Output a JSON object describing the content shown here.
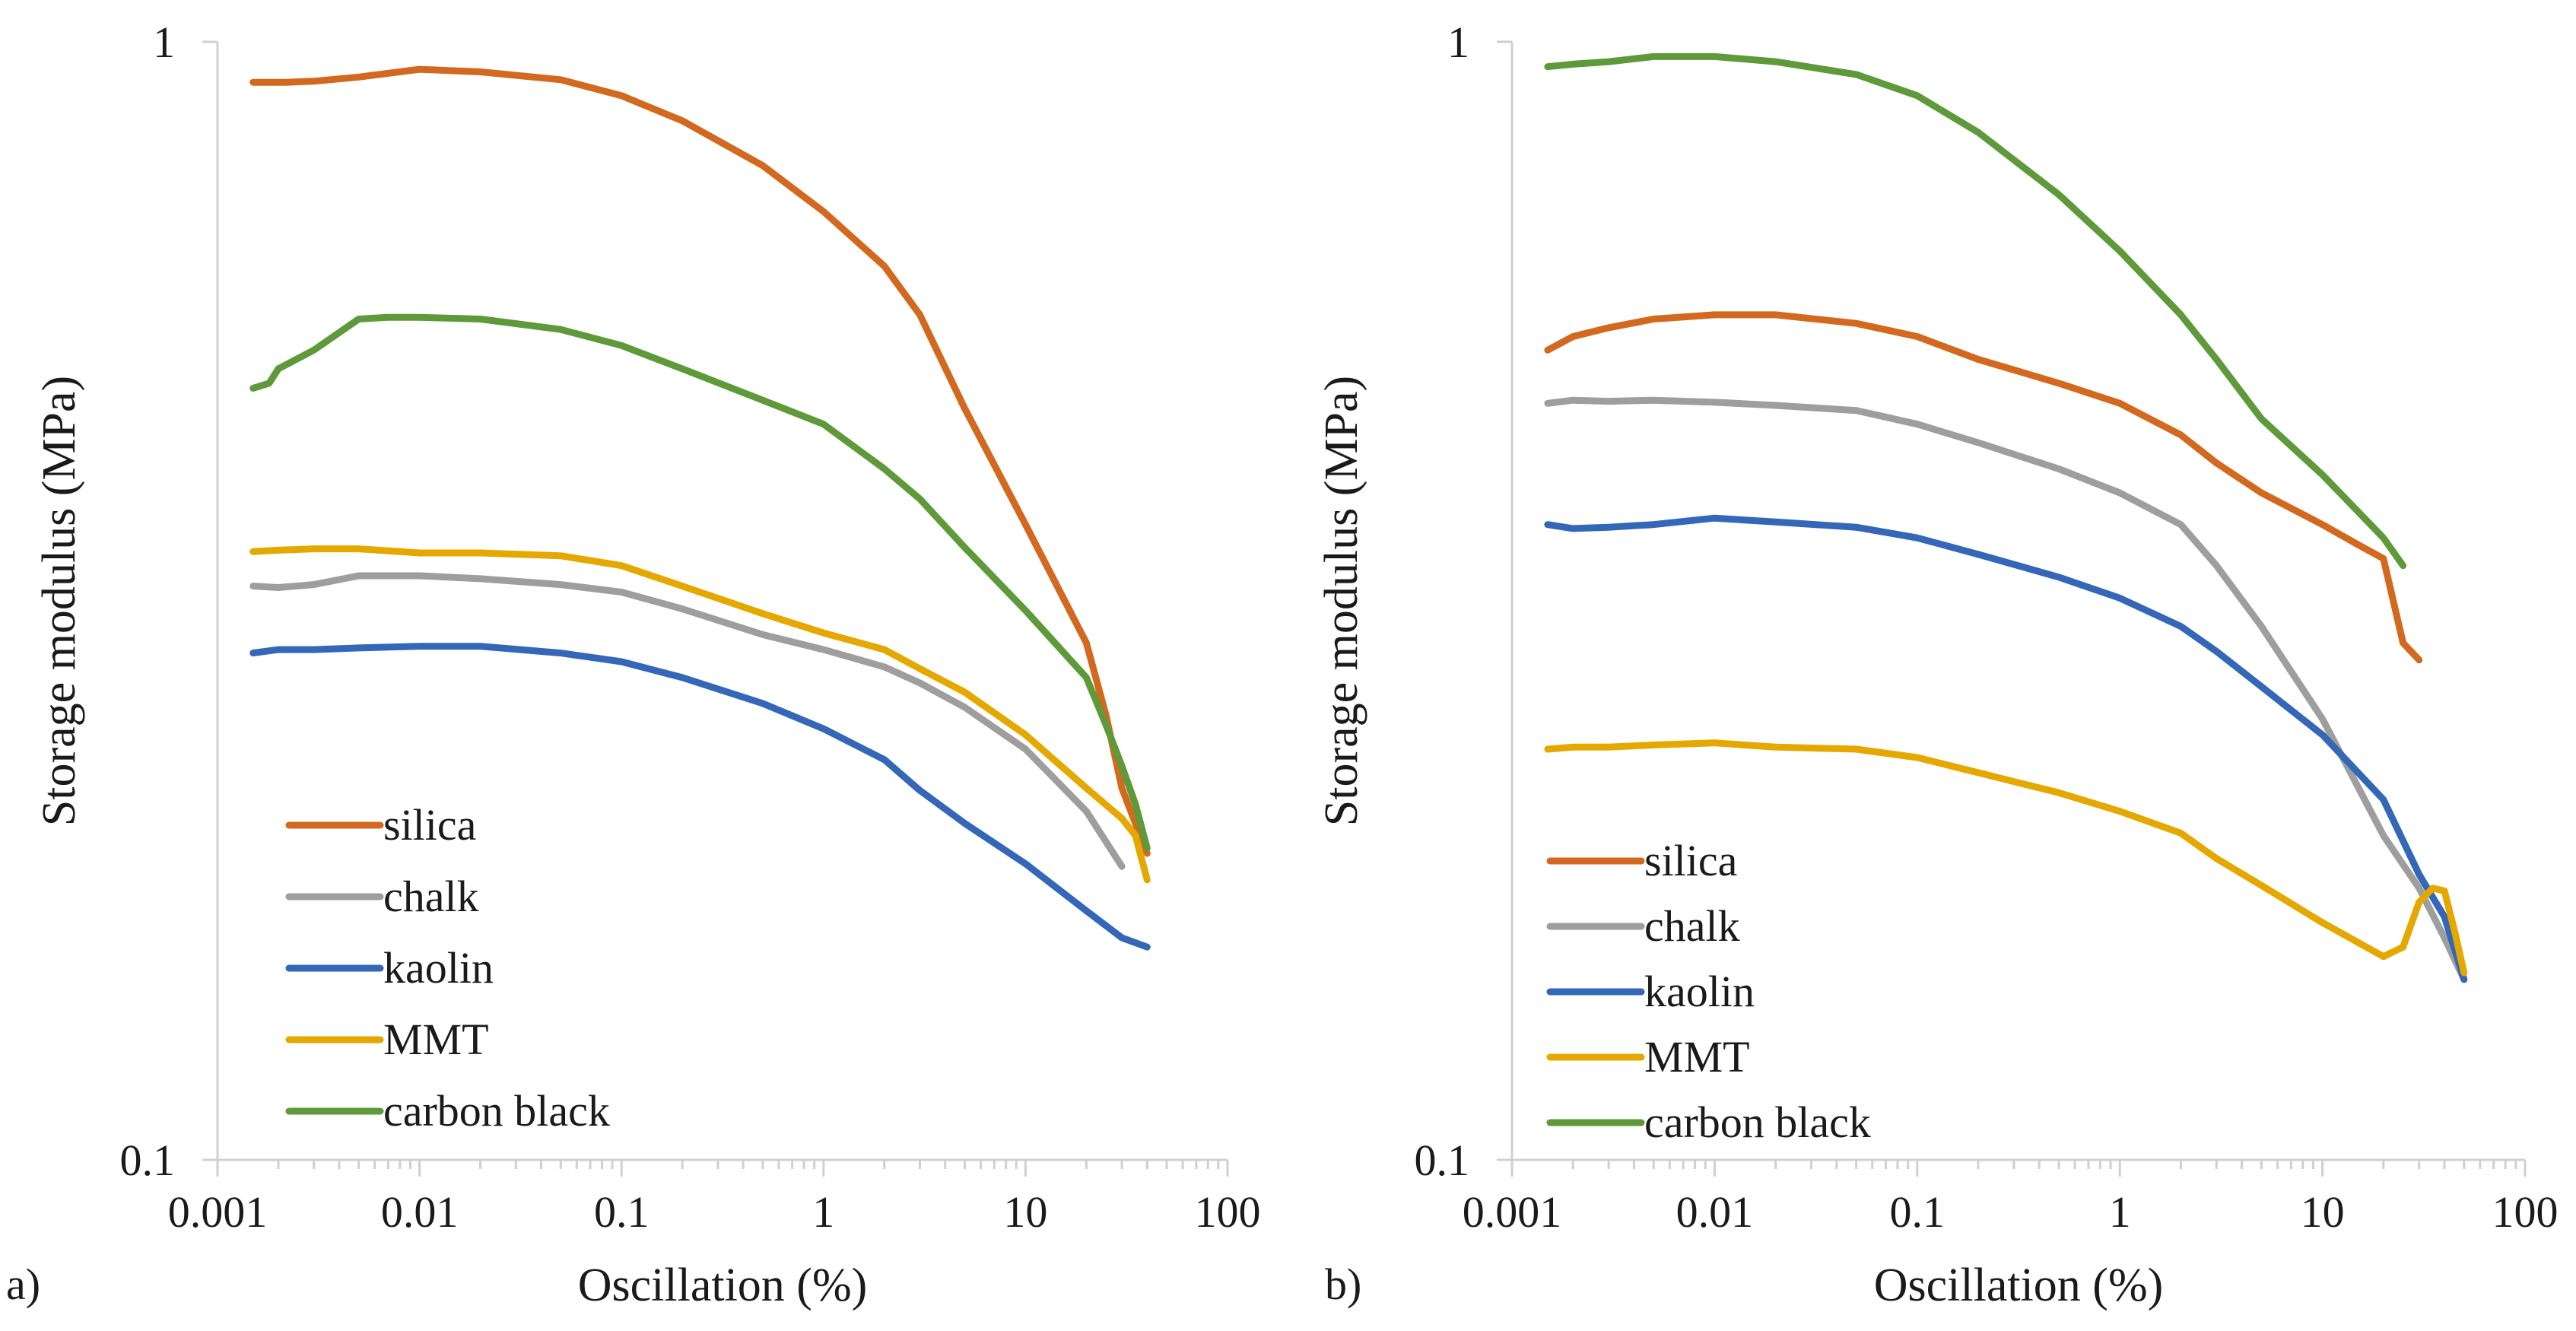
{
  "colors": {
    "silica": "#D2691E",
    "chalk": "#9E9E9E",
    "kaolin": "#3467B8",
    "MMT": "#E5A800",
    "carbon_black": "#5E9A3A",
    "axis": "#d0d0d0",
    "text": "#1a1a1a"
  },
  "chart_data": [
    {
      "type": "line",
      "panel_label": "a)",
      "xlabel": "Oscillation (%)",
      "ylabel": "Storage modulus (MPa)",
      "xscale": "log",
      "yscale": "log",
      "xlim": [
        0.001,
        100
      ],
      "ylim": [
        0.1,
        1
      ],
      "grid": false,
      "legend_position": "bottom-left",
      "x_ticks": [
        0.001,
        0.01,
        0.1,
        1,
        10,
        100
      ],
      "x_tick_labels": [
        "0.001",
        "0.01",
        "0.1",
        "1",
        "10",
        "100"
      ],
      "y_ticks": [
        0.1,
        1
      ],
      "y_tick_labels": [
        "0.1",
        "1"
      ],
      "series": [
        {
          "name": "silica",
          "key": "silica",
          "points": [
            [
              0.0015,
              0.92
            ],
            [
              0.0022,
              0.92
            ],
            [
              0.003,
              0.922
            ],
            [
              0.005,
              0.93
            ],
            [
              0.01,
              0.945
            ],
            [
              0.02,
              0.94
            ],
            [
              0.05,
              0.925
            ],
            [
              0.1,
              0.895
            ],
            [
              0.2,
              0.85
            ],
            [
              0.5,
              0.775
            ],
            [
              1,
              0.705
            ],
            [
              2,
              0.63
            ],
            [
              3,
              0.57
            ],
            [
              5,
              0.47
            ],
            [
              10,
              0.37
            ],
            [
              20,
              0.29
            ],
            [
              25,
              0.25
            ],
            [
              30,
              0.215
            ],
            [
              35,
              0.2
            ],
            [
              40,
              0.188
            ]
          ]
        },
        {
          "name": "chalk",
          "key": "chalk",
          "points": [
            [
              0.0015,
              0.326
            ],
            [
              0.002,
              0.325
            ],
            [
              0.003,
              0.327
            ],
            [
              0.005,
              0.333
            ],
            [
              0.01,
              0.333
            ],
            [
              0.02,
              0.331
            ],
            [
              0.05,
              0.327
            ],
            [
              0.1,
              0.322
            ],
            [
              0.2,
              0.311
            ],
            [
              0.5,
              0.295
            ],
            [
              1,
              0.286
            ],
            [
              2,
              0.276
            ],
            [
              3,
              0.267
            ],
            [
              5,
              0.254
            ],
            [
              10,
              0.233
            ],
            [
              20,
              0.205
            ],
            [
              30,
              0.183
            ]
          ]
        },
        {
          "name": "kaolin",
          "key": "kaolin",
          "points": [
            [
              0.0015,
              0.284
            ],
            [
              0.002,
              0.286
            ],
            [
              0.003,
              0.286
            ],
            [
              0.005,
              0.287
            ],
            [
              0.01,
              0.288
            ],
            [
              0.02,
              0.288
            ],
            [
              0.05,
              0.284
            ],
            [
              0.1,
              0.279
            ],
            [
              0.2,
              0.27
            ],
            [
              0.5,
              0.256
            ],
            [
              1,
              0.243
            ],
            [
              2,
              0.228
            ],
            [
              3,
              0.214
            ],
            [
              5,
              0.2
            ],
            [
              10,
              0.184
            ],
            [
              20,
              0.167
            ],
            [
              30,
              0.158
            ],
            [
              40,
              0.155
            ]
          ]
        },
        {
          "name": "MMT",
          "key": "MMT",
          "points": [
            [
              0.0015,
              0.35
            ],
            [
              0.002,
              0.351
            ],
            [
              0.003,
              0.352
            ],
            [
              0.005,
              0.352
            ],
            [
              0.01,
              0.349
            ],
            [
              0.02,
              0.349
            ],
            [
              0.05,
              0.347
            ],
            [
              0.1,
              0.34
            ],
            [
              0.2,
              0.326
            ],
            [
              0.5,
              0.308
            ],
            [
              1,
              0.296
            ],
            [
              2,
              0.286
            ],
            [
              3,
              0.275
            ],
            [
              5,
              0.262
            ],
            [
              10,
              0.24
            ],
            [
              20,
              0.215
            ],
            [
              30,
              0.202
            ],
            [
              35,
              0.195
            ],
            [
              40,
              0.178
            ]
          ]
        },
        {
          "name": "carbon black",
          "key": "carbon_black",
          "points": [
            [
              0.0015,
              0.49
            ],
            [
              0.0018,
              0.495
            ],
            [
              0.002,
              0.51
            ],
            [
              0.003,
              0.53
            ],
            [
              0.005,
              0.565
            ],
            [
              0.007,
              0.567
            ],
            [
              0.01,
              0.567
            ],
            [
              0.02,
              0.565
            ],
            [
              0.05,
              0.553
            ],
            [
              0.1,
              0.535
            ],
            [
              0.2,
              0.51
            ],
            [
              0.5,
              0.478
            ],
            [
              1,
              0.455
            ],
            [
              2,
              0.415
            ],
            [
              3,
              0.39
            ],
            [
              5,
              0.353
            ],
            [
              10,
              0.31
            ],
            [
              20,
              0.27
            ],
            [
              25,
              0.245
            ],
            [
              30,
              0.225
            ],
            [
              35,
              0.208
            ],
            [
              40,
              0.19
            ]
          ]
        }
      ]
    },
    {
      "type": "line",
      "panel_label": "b)",
      "xlabel": "Oscillation (%)",
      "ylabel": "Storage modulus (MPa)",
      "xscale": "log",
      "yscale": "log",
      "xlim": [
        0.001,
        100
      ],
      "ylim": [
        0.1,
        1
      ],
      "grid": false,
      "legend_position": "bottom-left",
      "x_ticks": [
        0.001,
        0.01,
        0.1,
        1,
        10,
        100
      ],
      "x_tick_labels": [
        "0.001",
        "0.01",
        "0.1",
        "1",
        "10",
        "100"
      ],
      "y_ticks": [
        0.1,
        1
      ],
      "y_tick_labels": [
        "0.1",
        "1"
      ],
      "series": [
        {
          "name": "silica",
          "key": "silica",
          "points": [
            [
              0.0015,
              0.53
            ],
            [
              0.002,
              0.545
            ],
            [
              0.003,
              0.555
            ],
            [
              0.005,
              0.565
            ],
            [
              0.01,
              0.57
            ],
            [
              0.02,
              0.57
            ],
            [
              0.05,
              0.56
            ],
            [
              0.1,
              0.545
            ],
            [
              0.2,
              0.52
            ],
            [
              0.5,
              0.495
            ],
            [
              1,
              0.475
            ],
            [
              2,
              0.445
            ],
            [
              3,
              0.42
            ],
            [
              5,
              0.395
            ],
            [
              10,
              0.37
            ],
            [
              15,
              0.355
            ],
            [
              20,
              0.345
            ],
            [
              25,
              0.29
            ],
            [
              30,
              0.28
            ]
          ]
        },
        {
          "name": "chalk",
          "key": "chalk",
          "points": [
            [
              0.0015,
              0.475
            ],
            [
              0.002,
              0.478
            ],
            [
              0.003,
              0.477
            ],
            [
              0.005,
              0.478
            ],
            [
              0.01,
              0.476
            ],
            [
              0.02,
              0.473
            ],
            [
              0.05,
              0.468
            ],
            [
              0.1,
              0.455
            ],
            [
              0.2,
              0.438
            ],
            [
              0.5,
              0.415
            ],
            [
              1,
              0.395
            ],
            [
              2,
              0.37
            ],
            [
              3,
              0.34
            ],
            [
              5,
              0.3
            ],
            [
              10,
              0.248
            ],
            [
              20,
              0.195
            ],
            [
              30,
              0.175
            ],
            [
              40,
              0.158
            ],
            [
              50,
              0.145
            ]
          ]
        },
        {
          "name": "kaolin",
          "key": "kaolin",
          "points": [
            [
              0.0015,
              0.37
            ],
            [
              0.002,
              0.367
            ],
            [
              0.003,
              0.368
            ],
            [
              0.005,
              0.37
            ],
            [
              0.01,
              0.375
            ],
            [
              0.02,
              0.372
            ],
            [
              0.05,
              0.368
            ],
            [
              0.1,
              0.36
            ],
            [
              0.2,
              0.348
            ],
            [
              0.5,
              0.332
            ],
            [
              1,
              0.318
            ],
            [
              2,
              0.3
            ],
            [
              3,
              0.285
            ],
            [
              5,
              0.265
            ],
            [
              10,
              0.24
            ],
            [
              20,
              0.21
            ],
            [
              30,
              0.18
            ],
            [
              40,
              0.165
            ],
            [
              50,
              0.145
            ]
          ]
        },
        {
          "name": "MMT",
          "key": "MMT",
          "points": [
            [
              0.0015,
              0.233
            ],
            [
              0.002,
              0.234
            ],
            [
              0.003,
              0.234
            ],
            [
              0.005,
              0.235
            ],
            [
              0.01,
              0.236
            ],
            [
              0.02,
              0.234
            ],
            [
              0.05,
              0.233
            ],
            [
              0.1,
              0.229
            ],
            [
              0.2,
              0.222
            ],
            [
              0.5,
              0.213
            ],
            [
              1,
              0.205
            ],
            [
              2,
              0.196
            ],
            [
              3,
              0.186
            ],
            [
              5,
              0.176
            ],
            [
              10,
              0.163
            ],
            [
              20,
              0.152
            ],
            [
              25,
              0.155
            ],
            [
              30,
              0.17
            ],
            [
              35,
              0.175
            ],
            [
              40,
              0.174
            ],
            [
              45,
              0.16
            ],
            [
              50,
              0.147
            ]
          ]
        },
        {
          "name": "carbon black",
          "key": "carbon_black",
          "points": [
            [
              0.0015,
              0.95
            ],
            [
              0.002,
              0.955
            ],
            [
              0.003,
              0.96
            ],
            [
              0.005,
              0.97
            ],
            [
              0.01,
              0.97
            ],
            [
              0.02,
              0.96
            ],
            [
              0.05,
              0.935
            ],
            [
              0.1,
              0.895
            ],
            [
              0.2,
              0.83
            ],
            [
              0.5,
              0.73
            ],
            [
              1,
              0.65
            ],
            [
              2,
              0.57
            ],
            [
              3,
              0.52
            ],
            [
              5,
              0.46
            ],
            [
              10,
              0.41
            ],
            [
              15,
              0.38
            ],
            [
              20,
              0.36
            ],
            [
              25,
              0.34
            ]
          ]
        }
      ]
    }
  ]
}
